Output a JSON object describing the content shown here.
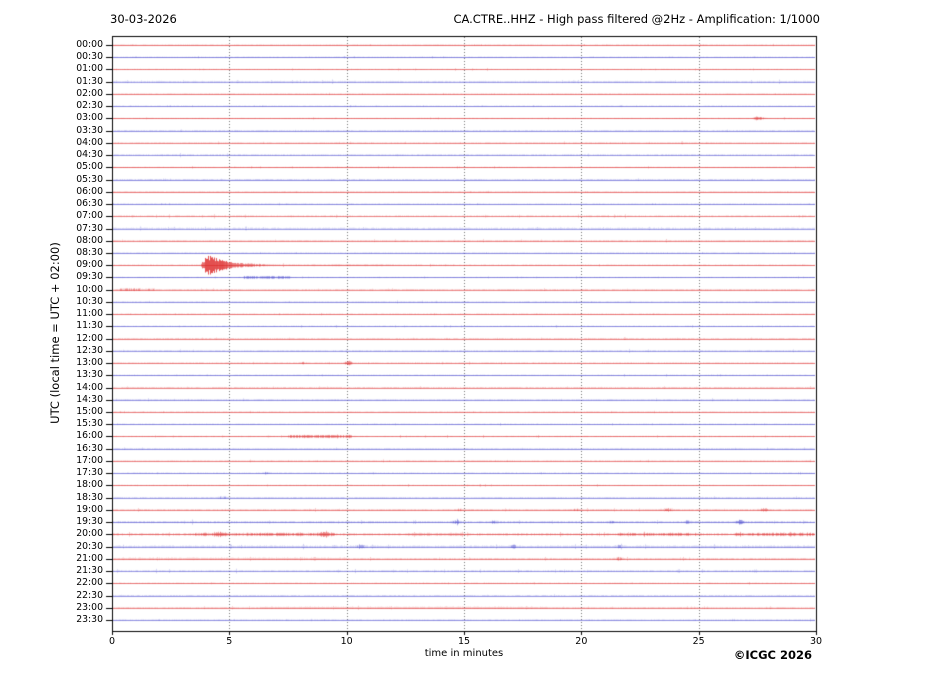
{
  "header": {
    "date": "30-03-2026",
    "title": "CA.CTRE..HHZ - High pass filtered @2Hz - Amplification: 1/1000"
  },
  "chart_data": {
    "type": "line",
    "variant": "helicorder-seismogram-daily-plot",
    "date": "30-03-2026",
    "title": "CA.CTRE..HHZ - High pass filtered @2Hz - Amplification: 1/1000",
    "xlabel": "time in minutes",
    "ylabel": "UTC (local time = UTC + 02:00)",
    "copyright": "©ICGC 2026",
    "xlim": [
      0,
      30
    ],
    "x_ticks": [
      0,
      5,
      10,
      15,
      20,
      25,
      30
    ],
    "grid_minutes": [
      5,
      10,
      15,
      20,
      25
    ],
    "row_interval_minutes": 30,
    "grid": true,
    "legend": "none",
    "colors": {
      "red": "#dc2828",
      "blue": "#4646cc",
      "grid": "#666666",
      "frame": "#000000"
    },
    "main_event": {
      "row": "09:00",
      "onset_minute": 3.8,
      "peak_minute": 4.1,
      "coda_end_minute": 8.5,
      "description": "earthquake signal, large amplitude burst with decaying coda",
      "color": "red"
    },
    "rows": [
      {
        "t": "00:00",
        "c": "red",
        "n": 0.5,
        "a": 0.75,
        "e": []
      },
      {
        "t": "00:30",
        "c": "blue",
        "n": 0.5,
        "a": 0.75,
        "e": []
      },
      {
        "t": "01:00",
        "c": "red",
        "n": 0.6,
        "a": 0.55,
        "e": []
      },
      {
        "t": "01:30",
        "c": "blue",
        "n": 0.9,
        "a": 0.45,
        "e": []
      },
      {
        "t": "02:00",
        "c": "red",
        "n": 0.5,
        "a": 0.7,
        "e": []
      },
      {
        "t": "02:30",
        "c": "blue",
        "n": 0.5,
        "a": 0.7,
        "e": []
      },
      {
        "t": "03:00",
        "c": "red",
        "n": 0.5,
        "a": 0.7,
        "e": [
          [
            27.2,
            27.9,
            1.8,
            "burst"
          ]
        ]
      },
      {
        "t": "03:30",
        "c": "blue",
        "n": 0.5,
        "a": 0.7,
        "e": []
      },
      {
        "t": "04:00",
        "c": "red",
        "n": 0.6,
        "a": 0.6,
        "e": []
      },
      {
        "t": "04:30",
        "c": "blue",
        "n": 0.9,
        "a": 0.45,
        "e": []
      },
      {
        "t": "05:00",
        "c": "red",
        "n": 0.5,
        "a": 0.75,
        "e": []
      },
      {
        "t": "05:30",
        "c": "blue",
        "n": 0.5,
        "a": 0.75,
        "e": []
      },
      {
        "t": "06:00",
        "c": "red",
        "n": 0.5,
        "a": 0.75,
        "e": []
      },
      {
        "t": "06:30",
        "c": "blue",
        "n": 0.5,
        "a": 0.7,
        "e": []
      },
      {
        "t": "07:00",
        "c": "red",
        "n": 0.9,
        "a": 0.45,
        "e": []
      },
      {
        "t": "07:30",
        "c": "blue",
        "n": 0.9,
        "a": 0.5,
        "e": []
      },
      {
        "t": "08:00",
        "c": "red",
        "n": 0.7,
        "a": 0.6,
        "e": []
      },
      {
        "t": "08:30",
        "c": "blue",
        "n": 0.5,
        "a": 0.7,
        "e": []
      },
      {
        "t": "09:00",
        "c": "red",
        "n": 0.6,
        "a": 0.7,
        "e": [
          [
            3.75,
            8.5,
            10,
            "eq"
          ],
          [
            8.5,
            12,
            0.5,
            "band"
          ]
        ]
      },
      {
        "t": "09:30",
        "c": "blue",
        "n": 0.55,
        "a": 0.7,
        "e": [
          [
            5.6,
            7.6,
            1.1,
            "band"
          ]
        ]
      },
      {
        "t": "10:00",
        "c": "red",
        "n": 0.7,
        "a": 0.6,
        "e": [
          [
            0.3,
            1.8,
            0.9,
            "band"
          ]
        ]
      },
      {
        "t": "10:30",
        "c": "blue",
        "n": 0.6,
        "a": 0.65,
        "e": []
      },
      {
        "t": "11:00",
        "c": "red",
        "n": 0.55,
        "a": 0.7,
        "e": []
      },
      {
        "t": "11:30",
        "c": "blue",
        "n": 0.65,
        "a": 0.6,
        "e": []
      },
      {
        "t": "12:00",
        "c": "red",
        "n": 0.55,
        "a": 0.7,
        "e": []
      },
      {
        "t": "12:30",
        "c": "blue",
        "n": 0.8,
        "a": 0.5,
        "e": []
      },
      {
        "t": "13:00",
        "c": "red",
        "n": 0.7,
        "a": 0.6,
        "e": [
          [
            7.9,
            8.4,
            0.9,
            "burst"
          ],
          [
            9.8,
            10.3,
            2.2,
            "burst"
          ]
        ]
      },
      {
        "t": "13:30",
        "c": "blue",
        "n": 0.55,
        "a": 0.7,
        "e": []
      },
      {
        "t": "14:00",
        "c": "red",
        "n": 0.6,
        "a": 0.65,
        "e": []
      },
      {
        "t": "14:30",
        "c": "blue",
        "n": 0.6,
        "a": 0.65,
        "e": []
      },
      {
        "t": "15:00",
        "c": "red",
        "n": 0.6,
        "a": 0.65,
        "e": []
      },
      {
        "t": "15:30",
        "c": "blue",
        "n": 0.55,
        "a": 0.7,
        "e": []
      },
      {
        "t": "16:00",
        "c": "red",
        "n": 0.65,
        "a": 0.6,
        "e": [
          [
            7.5,
            10.2,
            1.2,
            "band"
          ]
        ]
      },
      {
        "t": "16:30",
        "c": "blue",
        "n": 0.55,
        "a": 0.7,
        "e": []
      },
      {
        "t": "17:00",
        "c": "red",
        "n": 0.65,
        "a": 0.6,
        "e": []
      },
      {
        "t": "17:30",
        "c": "blue",
        "n": 0.6,
        "a": 0.65,
        "e": [
          [
            6.3,
            6.8,
            1.0,
            "burst"
          ]
        ]
      },
      {
        "t": "18:00",
        "c": "red",
        "n": 0.6,
        "a": 0.65,
        "e": []
      },
      {
        "t": "18:30",
        "c": "blue",
        "n": 0.65,
        "a": 0.6,
        "e": [
          [
            4.4,
            5.0,
            1.2,
            "burst"
          ]
        ]
      },
      {
        "t": "19:00",
        "c": "red",
        "n": 0.9,
        "a": 0.6,
        "e": [
          [
            14.5,
            15.1,
            0.9,
            "burst"
          ],
          [
            19.5,
            20.1,
            1.0,
            "burst"
          ],
          [
            23.3,
            24.0,
            1.4,
            "burst"
          ],
          [
            27.4,
            28.2,
            1.3,
            "burst"
          ]
        ]
      },
      {
        "t": "19:30",
        "c": "blue",
        "n": 1.1,
        "a": 0.65,
        "e": [
          [
            14.4,
            14.9,
            2.0,
            "burst"
          ],
          [
            16.0,
            16.5,
            1.4,
            "burst"
          ],
          [
            21.0,
            21.5,
            1.2,
            "burst"
          ],
          [
            24.3,
            24.8,
            1.6,
            "burst"
          ],
          [
            26.5,
            27.0,
            2.4,
            "burst"
          ]
        ]
      },
      {
        "t": "20:00",
        "c": "red",
        "n": 1.2,
        "a": 0.75,
        "e": [
          [
            3.5,
            9.5,
            0.9,
            "band"
          ],
          [
            12.5,
            15.0,
            0.6,
            "band"
          ],
          [
            21.5,
            25.0,
            0.8,
            "band"
          ],
          [
            26.5,
            30.0,
            0.9,
            "band"
          ],
          [
            4.3,
            4.9,
            1.4,
            "burst"
          ],
          [
            8.7,
            9.3,
            1.3,
            "burst"
          ]
        ]
      },
      {
        "t": "20:30",
        "c": "blue",
        "n": 1.1,
        "a": 0.65,
        "e": [
          [
            10.3,
            10.9,
            1.8,
            "burst"
          ],
          [
            16.8,
            17.4,
            1.3,
            "burst"
          ],
          [
            21.3,
            21.9,
            1.2,
            "burst"
          ]
        ]
      },
      {
        "t": "21:00",
        "c": "red",
        "n": 0.9,
        "a": 0.6,
        "e": [
          [
            0.2,
            10.0,
            0.5,
            "band"
          ],
          [
            21.3,
            21.9,
            1.3,
            "burst"
          ]
        ]
      },
      {
        "t": "21:30",
        "c": "blue",
        "n": 0.95,
        "a": 0.45,
        "e": []
      },
      {
        "t": "22:00",
        "c": "red",
        "n": 0.6,
        "a": 0.65,
        "e": []
      },
      {
        "t": "22:30",
        "c": "blue",
        "n": 0.55,
        "a": 0.65,
        "e": []
      },
      {
        "t": "23:00",
        "c": "red",
        "n": 0.7,
        "a": 0.6,
        "e": [
          [
            6.3,
            18.5,
            0.6,
            "band"
          ]
        ]
      },
      {
        "t": "23:30",
        "c": "blue",
        "n": 0.6,
        "a": 0.6,
        "e": []
      }
    ]
  }
}
